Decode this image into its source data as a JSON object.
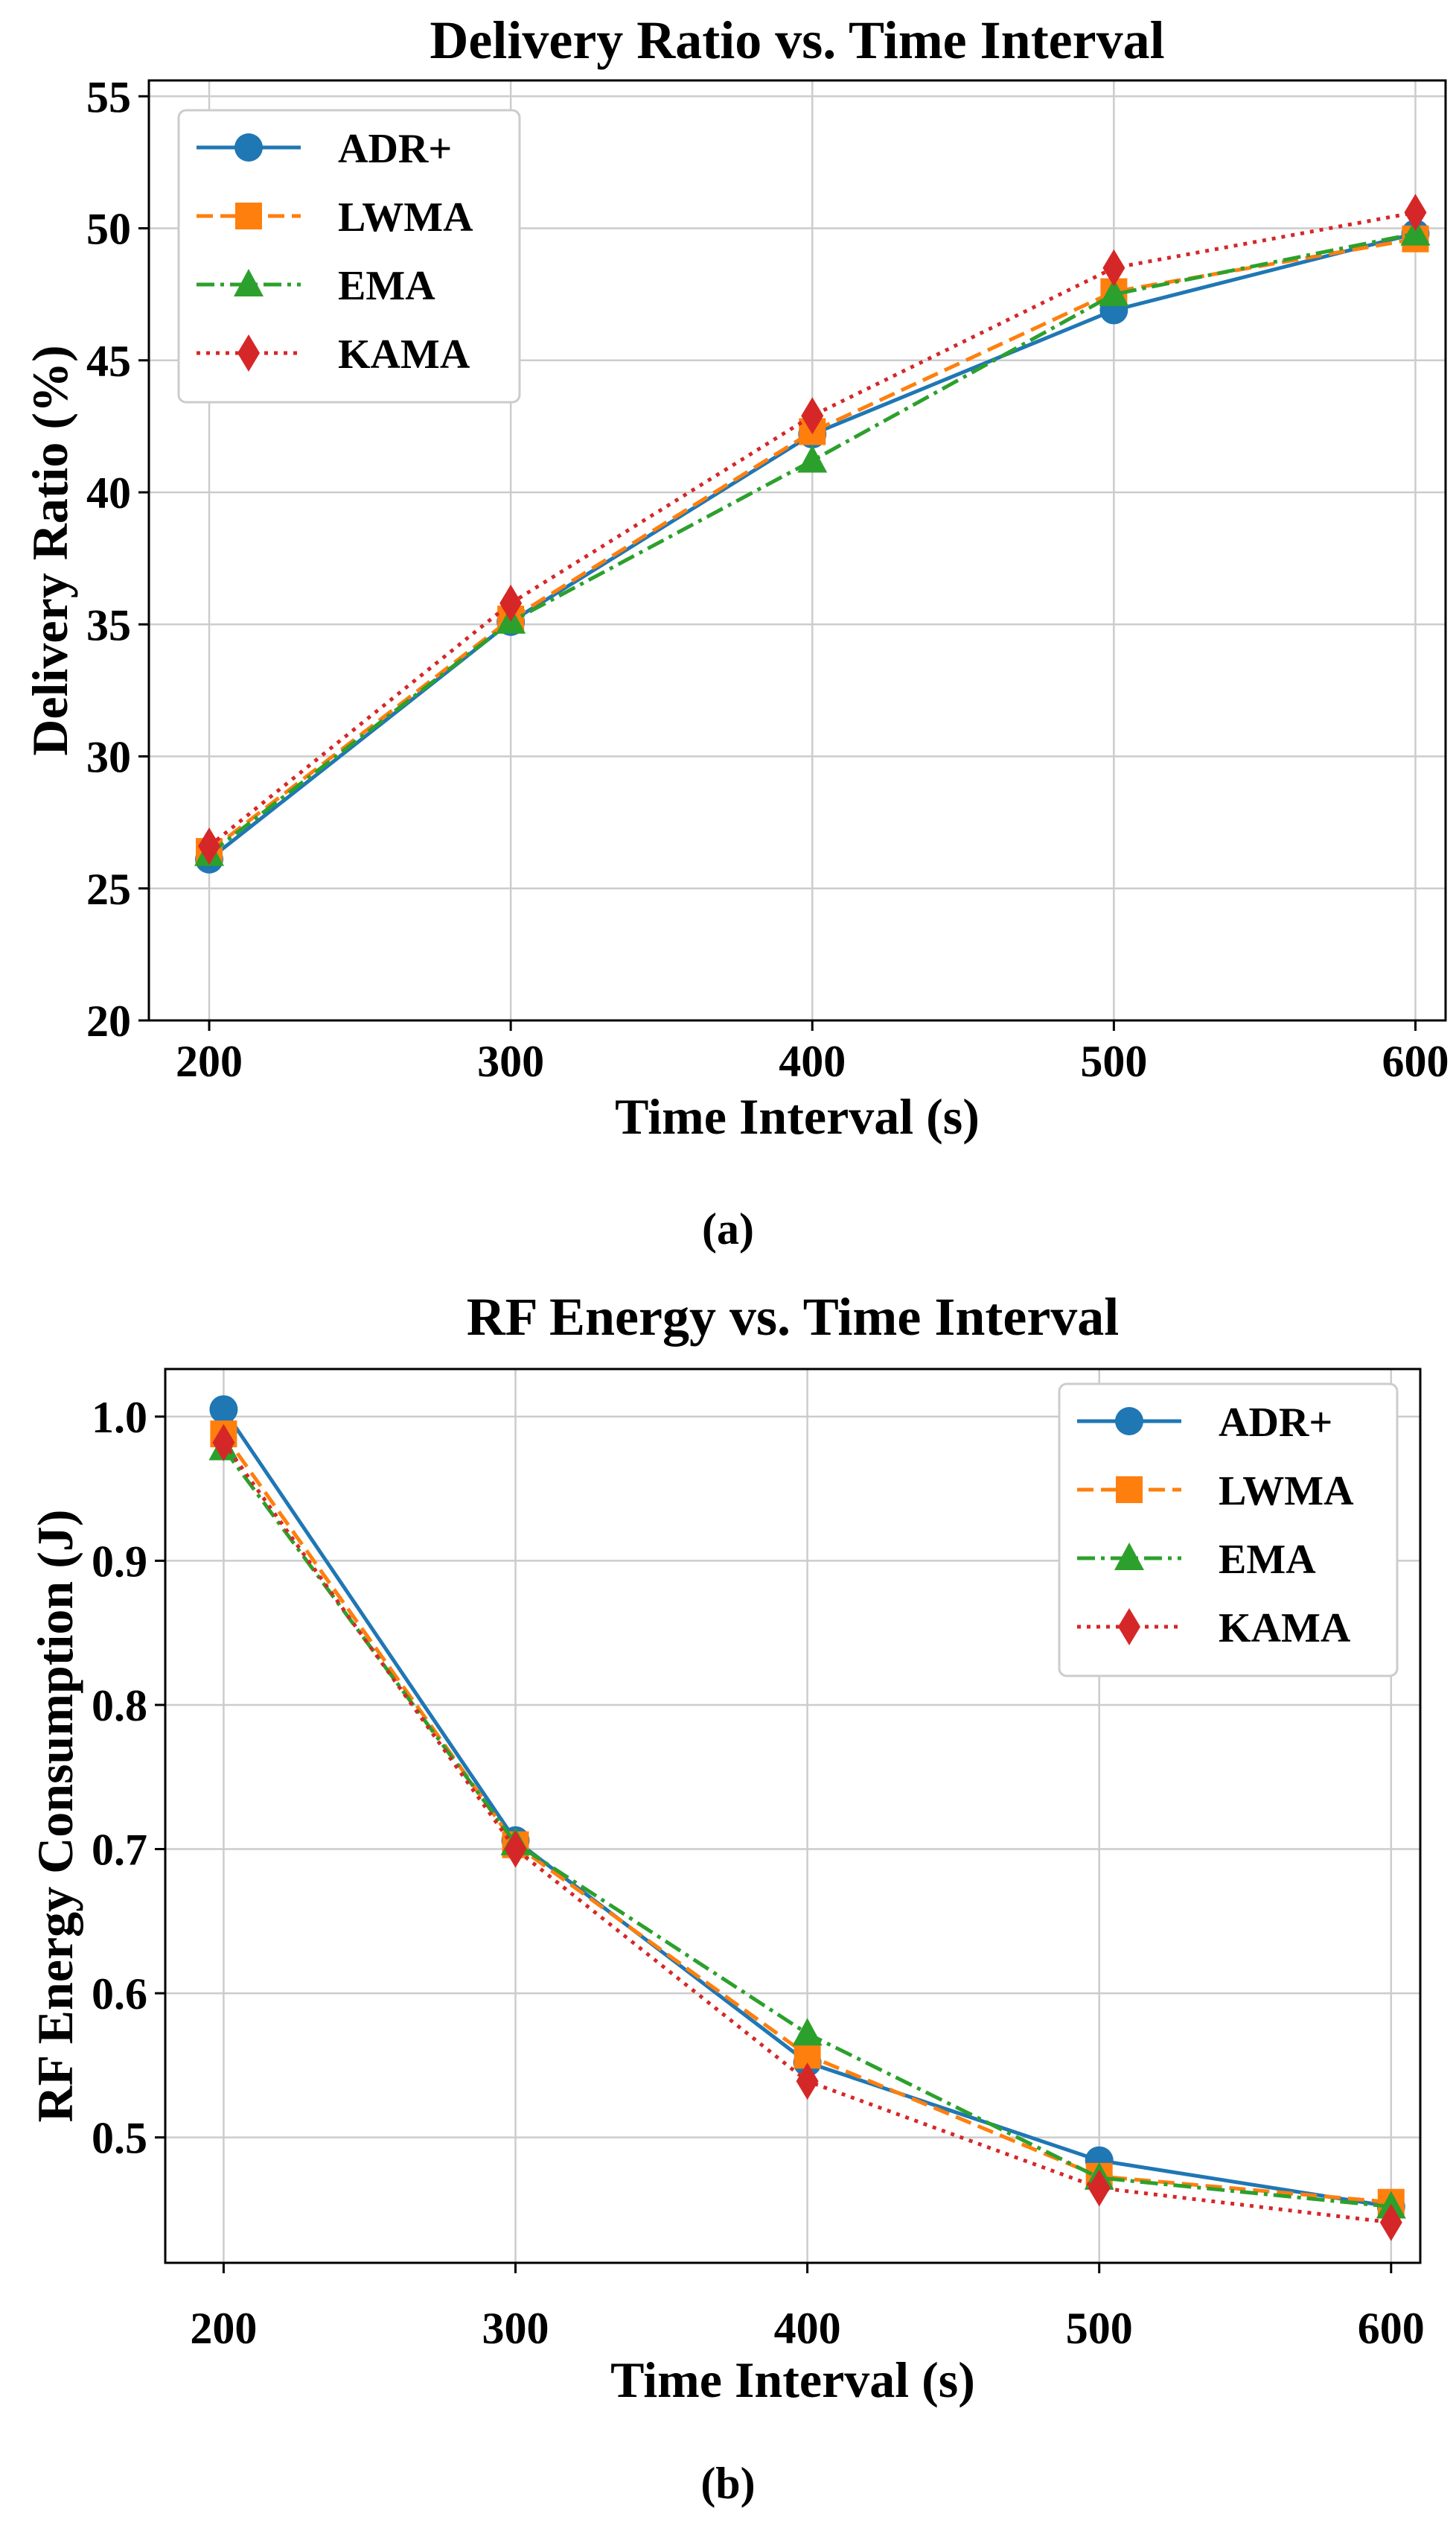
{
  "chart_data": [
    {
      "type": "line",
      "title": "Delivery Ratio vs. Time Interval",
      "xlabel": "Time Interval (s)",
      "ylabel": "Delivery Ratio (%)",
      "caption": "(a)",
      "x": [
        200,
        300,
        400,
        500,
        600
      ],
      "xticks": [
        "200",
        "300",
        "400",
        "500",
        "600"
      ],
      "yticks": [
        20,
        25,
        30,
        35,
        40,
        45,
        50,
        55
      ],
      "ytick_labels": [
        "20",
        "25",
        "30",
        "35",
        "40",
        "45",
        "50",
        "55"
      ],
      "xlim": [
        180,
        610
      ],
      "ylim": [
        20,
        55.6
      ],
      "grid": true,
      "legend_position": "top-left",
      "series": [
        {
          "name": "ADR+",
          "values": [
            26.1,
            35.1,
            42.2,
            46.9,
            49.8
          ],
          "color": "#1f77b4",
          "marker": "circle",
          "dash": "solid"
        },
        {
          "name": "LWMA",
          "values": [
            26.4,
            35.2,
            42.3,
            47.6,
            49.6
          ],
          "color": "#ff7f0e",
          "marker": "square",
          "dash": "dashed"
        },
        {
          "name": "EMA",
          "values": [
            26.3,
            35.1,
            41.2,
            47.5,
            49.8
          ],
          "color": "#2ca02c",
          "marker": "triangle",
          "dash": "dashdot"
        },
        {
          "name": "KAMA",
          "values": [
            26.6,
            35.8,
            42.9,
            48.5,
            50.6
          ],
          "color": "#d62728",
          "marker": "diamond",
          "dash": "dotted"
        }
      ]
    },
    {
      "type": "line",
      "title": "RF Energy vs. Time Interval",
      "xlabel": "Time Interval (s)",
      "ylabel": "RF Energy Consumption (J)",
      "caption": "(b)",
      "x": [
        200,
        300,
        400,
        500,
        600
      ],
      "xticks": [
        "200",
        "300",
        "400",
        "500",
        "600"
      ],
      "yticks": [
        0.5,
        0.6,
        0.7,
        0.8,
        0.9,
        1.0
      ],
      "ytick_labels": [
        "0.5",
        "0.6",
        "0.7",
        "0.8",
        "0.9",
        "1.0"
      ],
      "xlim": [
        180,
        610
      ],
      "ylim": [
        0.413,
        1.033
      ],
      "grid": true,
      "legend_position": "top-right",
      "series": [
        {
          "name": "ADR+",
          "values": [
            1.005,
            0.706,
            0.552,
            0.484,
            0.452
          ],
          "color": "#1f77b4",
          "marker": "circle",
          "dash": "solid"
        },
        {
          "name": "LWMA",
          "values": [
            0.988,
            0.703,
            0.557,
            0.473,
            0.455
          ],
          "color": "#ff7f0e",
          "marker": "square",
          "dash": "dashed"
        },
        {
          "name": "EMA",
          "values": [
            0.978,
            0.704,
            0.572,
            0.472,
            0.452
          ],
          "color": "#2ca02c",
          "marker": "triangle",
          "dash": "dashdot"
        },
        {
          "name": "KAMA",
          "values": [
            0.982,
            0.7,
            0.539,
            0.465,
            0.441
          ],
          "color": "#d62728",
          "marker": "diamond",
          "dash": "dotted"
        }
      ]
    }
  ]
}
